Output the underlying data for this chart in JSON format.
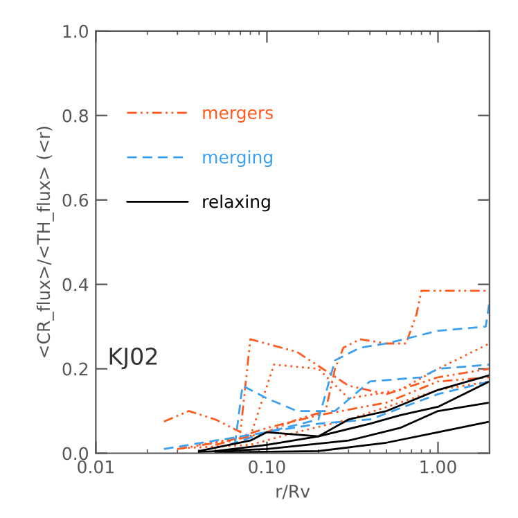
{
  "chart_data": {
    "type": "line",
    "xlabel": "r/Rv",
    "ylabel": "<CR_flux>/<TH_flux> (<r)",
    "log": "x",
    "xlim": [
      0.01,
      2.0
    ],
    "ylim": [
      0,
      1.0
    ],
    "xticks": [
      {
        "value": 0.01,
        "label": "0.01"
      },
      {
        "value": 0.1,
        "label": "0.10"
      },
      {
        "value": 1.0,
        "label": "1.00"
      }
    ],
    "yticks": [
      {
        "value": 0,
        "label": "0.0"
      },
      {
        "value": 0.2,
        "label": "0.2"
      },
      {
        "value": 0.4,
        "label": "0.4"
      },
      {
        "value": 0.6,
        "label": "0.6"
      },
      {
        "value": 0.8,
        "label": "0.8"
      },
      {
        "value": 1.0,
        "label": "1.0"
      }
    ],
    "legend": "top left",
    "grid": false,
    "marker": "none",
    "annotations": [
      "KJ02"
    ],
    "series": [
      {
        "name": "mergers",
        "color": "#ff5a1e",
        "line_style": "dashdot",
        "x": [
          0.05,
          0.1,
          0.15,
          0.22,
          0.25,
          0.28,
          0.35,
          0.5,
          0.65,
          0.75,
          0.8,
          2.0
        ],
        "values": [
          0.02,
          0.05,
          0.08,
          0.1,
          0.2,
          0.25,
          0.27,
          0.26,
          0.26,
          0.33,
          0.385,
          0.385
        ]
      },
      {
        "color": "#ff5a1e",
        "line_style": "dashdot",
        "x": [
          0.025,
          0.035,
          0.05,
          0.07,
          0.08,
          0.15,
          0.3,
          0.5,
          1.0,
          2.0
        ],
        "values": [
          0.075,
          0.1,
          0.08,
          0.05,
          0.27,
          0.24,
          0.16,
          0.14,
          0.18,
          0.2
        ]
      },
      {
        "color": "#ff5a1e",
        "line_style": "dotted",
        "x": [
          0.04,
          0.08,
          0.11,
          0.2,
          0.3,
          0.6,
          1.0,
          2.0
        ],
        "values": [
          0.02,
          0.04,
          0.21,
          0.2,
          0.13,
          0.15,
          0.2,
          0.26
        ]
      },
      {
        "color": "#ff5a1e",
        "line_style": "dashdot",
        "x": [
          0.03,
          0.06,
          0.1,
          0.2,
          0.5,
          1.0,
          2.0
        ],
        "values": [
          0.01,
          0.03,
          0.06,
          0.09,
          0.12,
          0.17,
          0.18
        ]
      },
      {
        "color": "#ff5a1e",
        "line_style": "dotted",
        "x": [
          0.032,
          0.08,
          0.15,
          0.3,
          0.6,
          1.0,
          2.0
        ],
        "values": [
          0.012,
          0.02,
          0.05,
          0.08,
          0.12,
          0.15,
          0.17
        ]
      },
      {
        "name": "merging",
        "color": "#3ca0f0",
        "line_style": "dashed",
        "x": [
          0.06,
          0.1,
          0.2,
          0.25,
          0.35,
          0.5,
          1.0,
          1.9,
          2.0
        ],
        "values": [
          0.02,
          0.05,
          0.08,
          0.22,
          0.25,
          0.26,
          0.29,
          0.3,
          0.36
        ]
      },
      {
        "color": "#3ca0f0",
        "line_style": "dashed",
        "x": [
          0.065,
          0.072,
          0.1,
          0.15,
          0.25,
          0.4,
          0.8,
          1.0,
          2.0
        ],
        "values": [
          0.02,
          0.16,
          0.13,
          0.1,
          0.1,
          0.17,
          0.18,
          0.2,
          0.21
        ]
      },
      {
        "color": "#3ca0f0",
        "line_style": "dashed",
        "x": [
          0.025,
          0.05,
          0.1,
          0.2,
          0.4,
          1.0,
          2.0
        ],
        "values": [
          0.01,
          0.03,
          0.05,
          0.07,
          0.08,
          0.14,
          0.17
        ]
      },
      {
        "name": "relaxing",
        "color": "#000000",
        "line_style": "solid",
        "x": [
          0.04,
          0.08,
          0.1,
          0.2,
          0.3,
          0.5,
          1.0,
          2.0
        ],
        "values": [
          0.005,
          0.03,
          0.05,
          0.04,
          0.08,
          0.1,
          0.15,
          0.185
        ]
      },
      {
        "color": "#000000",
        "line_style": "solid",
        "x": [
          0.05,
          0.1,
          0.2,
          0.4,
          0.6,
          1.0,
          2.0
        ],
        "values": [
          0.005,
          0.02,
          0.04,
          0.07,
          0.09,
          0.11,
          0.17
        ]
      },
      {
        "color": "#000000",
        "line_style": "solid",
        "x": [
          0.04,
          0.1,
          0.3,
          0.6,
          1.0,
          2.0
        ],
        "values": [
          0.003,
          0.01,
          0.03,
          0.06,
          0.1,
          0.12
        ]
      },
      {
        "color": "#000000",
        "line_style": "solid",
        "x": [
          0.05,
          0.2,
          0.5,
          1.0,
          2.0
        ],
        "values": [
          0.002,
          0.005,
          0.025,
          0.05,
          0.075
        ]
      }
    ]
  }
}
